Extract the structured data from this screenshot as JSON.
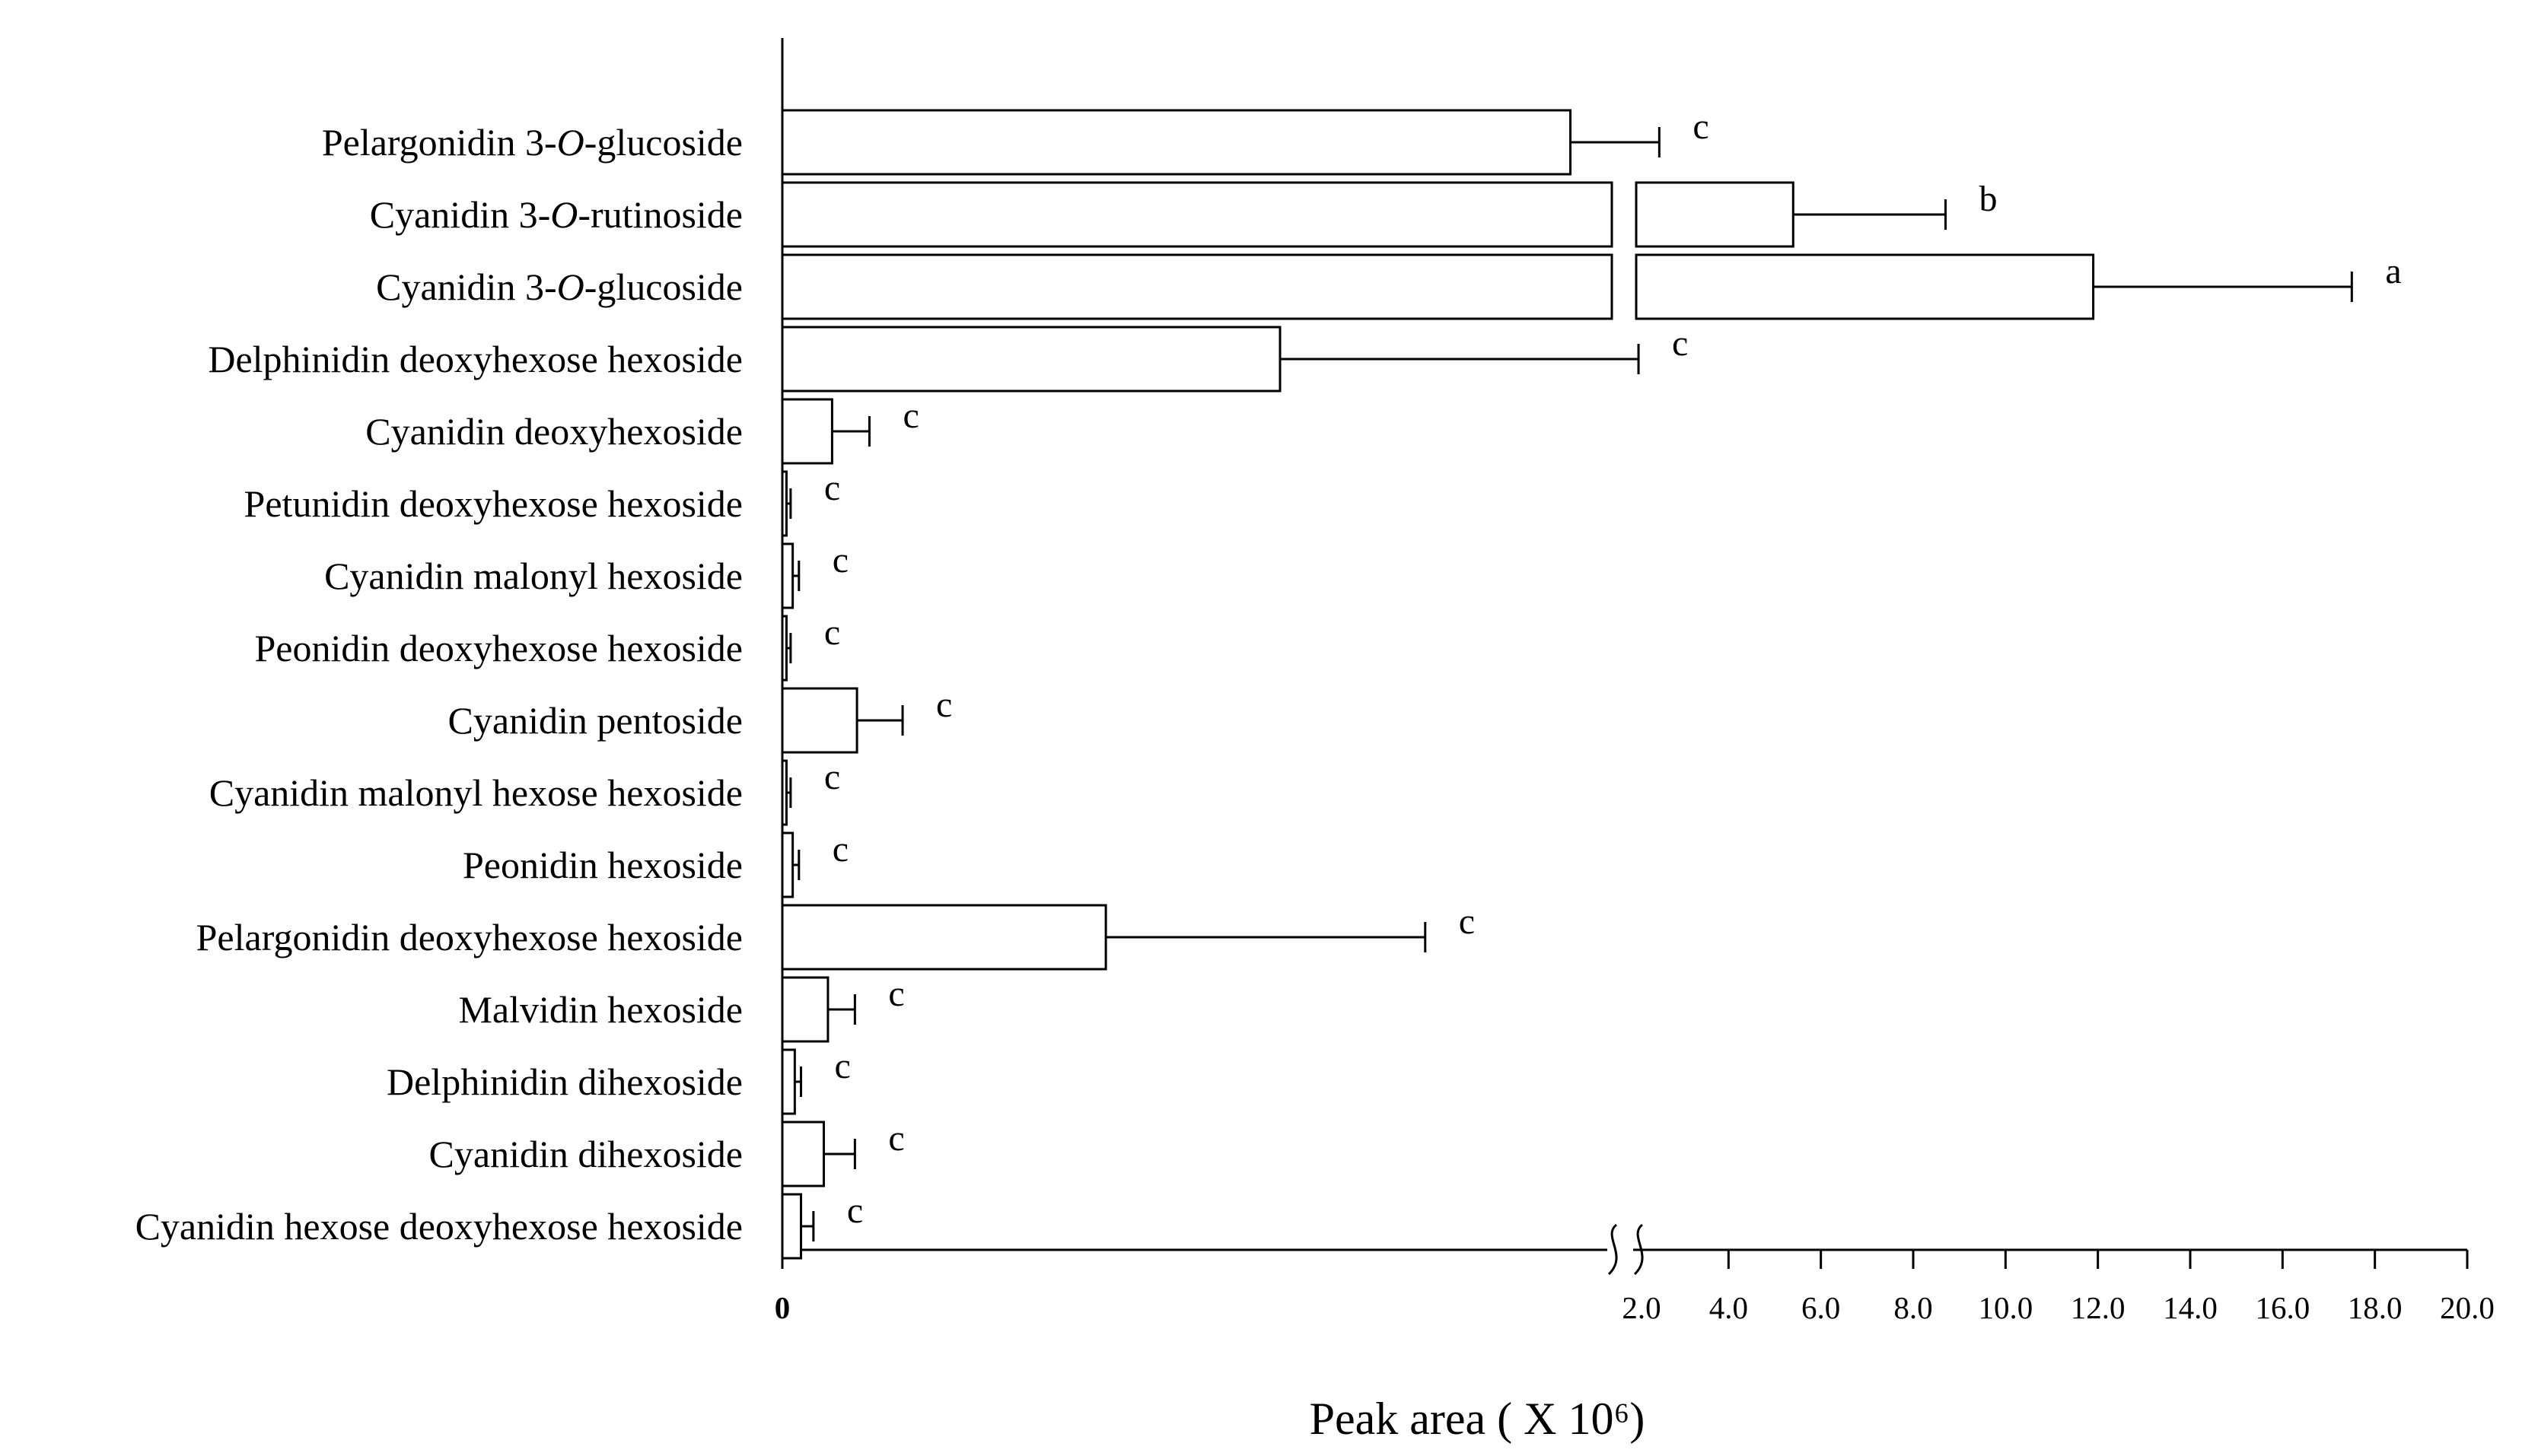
{
  "chart_data": {
    "type": "bar",
    "orientation": "horizontal",
    "title": "",
    "xlabel": "Peak area ( X 10⁶)",
    "ylabel": "",
    "axis_break": true,
    "x_ticks_lower": [
      "0"
    ],
    "x_ticks_upper": [
      "2.0",
      "4.0",
      "6.0",
      "8.0",
      "10.0",
      "12.0",
      "14.0",
      "16.0",
      "18.0",
      "20.0"
    ],
    "categories": [
      "Pelargonidin 3-O-glucoside",
      "Cyanidin 3-O-rutinoside",
      "Cyanidin 3-O-glucoside",
      "Delphinidin deoxyhexose hexoside",
      "Cyanidin deoxyhexoside",
      "Petunidin deoxyhexose hexoside",
      "Cyanidin malonyl hexoside",
      "Peonidin deoxyhexose hexoside",
      "Cyanidin pentoside",
      "Cyanidin malonyl hexose hexoside",
      "Peonidin hexoside",
      "Pelargonidin deoxyhexose hexoside",
      "Malvidin hexoside",
      "Delphinidin dihexoside",
      "Cyanidin dihexoside",
      "Cyanidin hexose deoxyhexose hexoside"
    ],
    "series": [
      {
        "name": "Peak area",
        "values": [
          1.9,
          5.4,
          11.9,
          1.2,
          0.12,
          0.01,
          0.025,
          0.01,
          0.18,
          0.01,
          0.025,
          0.78,
          0.11,
          0.03,
          0.1,
          0.045
        ],
        "errors": [
          0.6,
          3.3,
          5.6,
          0.85,
          0.09,
          0.01,
          0.015,
          0.01,
          0.11,
          0.01,
          0.015,
          0.77,
          0.065,
          0.015,
          0.075,
          0.03
        ]
      }
    ],
    "significance_letters": [
      "c",
      "b",
      "a",
      "c",
      "c",
      "c",
      "c",
      "c",
      "c",
      "c",
      "c",
      "c",
      "c",
      "c",
      "c",
      "c"
    ]
  }
}
